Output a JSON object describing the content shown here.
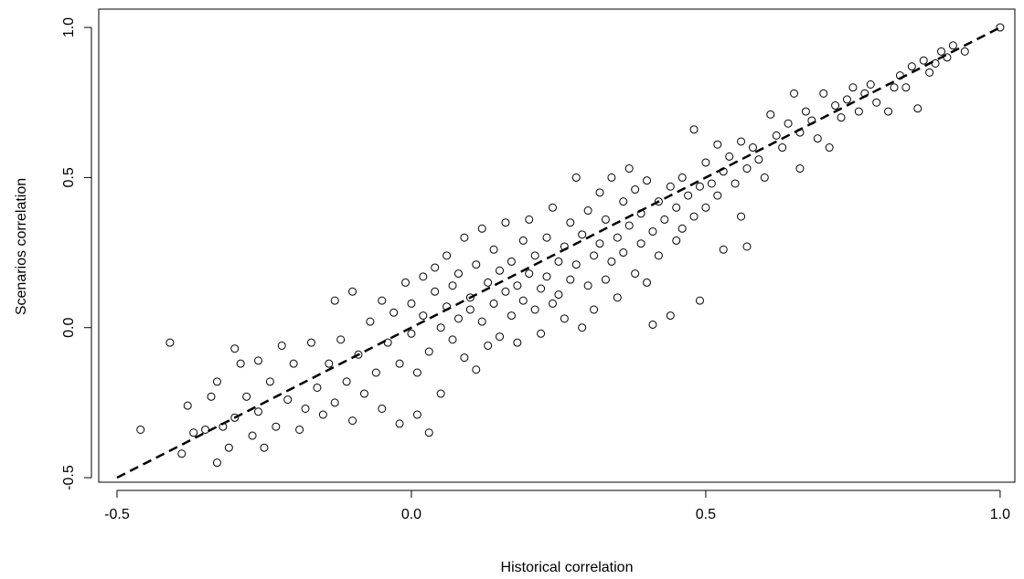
{
  "chart_data": {
    "type": "scatter",
    "x_label": "Historical correlation",
    "y_label": "Scenarios correlation",
    "xlim": [
      -0.531,
      1.025
    ],
    "ylim": [
      -0.515,
      1.061
    ],
    "xticks": [
      -0.5,
      {
        "value": 0,
        "label": "0.0"
      },
      0.5,
      {
        "value": 1,
        "label": "1.0"
      }
    ],
    "yticks": [
      -0.5,
      {
        "value": 0,
        "label": "0.0"
      },
      0.5,
      {
        "value": 1,
        "label": "1.0"
      }
    ],
    "color": "#000000",
    "reference_line": {
      "x": [
        -0.5,
        1.0
      ],
      "y": [
        -0.5,
        1.0
      ]
    },
    "x": [
      -0.46,
      -0.41,
      -0.39,
      -0.38,
      -0.37,
      -0.35,
      -0.34,
      -0.33,
      -0.33,
      -0.32,
      -0.31,
      -0.3,
      -0.3,
      -0.29,
      -0.28,
      -0.27,
      -0.26,
      -0.26,
      -0.25,
      -0.24,
      -0.23,
      -0.22,
      -0.21,
      -0.2,
      -0.19,
      -0.18,
      -0.17,
      -0.16,
      -0.15,
      -0.14,
      -0.13,
      -0.13,
      -0.12,
      -0.11,
      -0.1,
      -0.1,
      -0.09,
      -0.08,
      -0.07,
      -0.06,
      -0.05,
      -0.05,
      -0.04,
      -0.03,
      -0.02,
      -0.02,
      -0.01,
      0.0,
      0.0,
      0.01,
      0.01,
      0.02,
      0.02,
      0.03,
      0.03,
      0.04,
      0.04,
      0.05,
      0.05,
      0.06,
      0.06,
      0.07,
      0.07,
      0.08,
      0.08,
      0.09,
      0.09,
      0.1,
      0.1,
      0.11,
      0.11,
      0.12,
      0.12,
      0.13,
      0.13,
      0.14,
      0.14,
      0.15,
      0.15,
      0.16,
      0.16,
      0.17,
      0.17,
      0.18,
      0.18,
      0.19,
      0.19,
      0.2,
      0.2,
      0.21,
      0.21,
      0.22,
      0.22,
      0.23,
      0.23,
      0.24,
      0.24,
      0.25,
      0.25,
      0.26,
      0.26,
      0.27,
      0.27,
      0.28,
      0.28,
      0.29,
      0.29,
      0.3,
      0.3,
      0.31,
      0.31,
      0.32,
      0.32,
      0.33,
      0.33,
      0.34,
      0.34,
      0.35,
      0.35,
      0.36,
      0.36,
      0.37,
      0.37,
      0.38,
      0.38,
      0.39,
      0.39,
      0.4,
      0.4,
      0.41,
      0.41,
      0.42,
      0.42,
      0.43,
      0.44,
      0.44,
      0.45,
      0.45,
      0.46,
      0.46,
      0.47,
      0.48,
      0.48,
      0.49,
      0.49,
      0.5,
      0.5,
      0.51,
      0.52,
      0.52,
      0.53,
      0.53,
      0.54,
      0.55,
      0.56,
      0.56,
      0.57,
      0.57,
      0.58,
      0.59,
      0.6,
      0.61,
      0.62,
      0.63,
      0.64,
      0.65,
      0.66,
      0.66,
      0.67,
      0.68,
      0.69,
      0.7,
      0.71,
      0.72,
      0.73,
      0.74,
      0.75,
      0.76,
      0.77,
      0.78,
      0.79,
      0.81,
      0.82,
      0.83,
      0.84,
      0.85,
      0.86,
      0.87,
      0.88,
      0.89,
      0.9,
      0.91,
      0.92,
      0.94,
      1.0
    ],
    "values": [
      -0.34,
      -0.05,
      -0.42,
      -0.26,
      -0.35,
      -0.34,
      -0.23,
      -0.18,
      -0.45,
      -0.33,
      -0.4,
      -0.07,
      -0.3,
      -0.12,
      -0.23,
      -0.36,
      -0.11,
      -0.28,
      -0.4,
      -0.18,
      -0.33,
      -0.06,
      -0.24,
      -0.12,
      -0.34,
      -0.27,
      -0.05,
      -0.2,
      -0.29,
      -0.12,
      0.09,
      -0.25,
      -0.04,
      -0.18,
      0.12,
      -0.31,
      -0.09,
      -0.22,
      0.02,
      -0.15,
      0.09,
      -0.27,
      -0.05,
      0.05,
      -0.32,
      -0.12,
      0.15,
      -0.02,
      0.08,
      -0.15,
      -0.29,
      0.17,
      0.04,
      -0.35,
      -0.08,
      0.12,
      0.2,
      -0.22,
      0.0,
      0.07,
      0.24,
      -0.04,
      0.14,
      0.03,
      0.18,
      0.3,
      -0.1,
      0.1,
      0.06,
      0.21,
      -0.14,
      0.02,
      0.33,
      0.15,
      -0.06,
      0.08,
      0.26,
      0.19,
      -0.03,
      0.12,
      0.35,
      0.04,
      0.22,
      0.14,
      -0.05,
      0.29,
      0.09,
      0.18,
      0.36,
      0.06,
      0.24,
      0.13,
      -0.02,
      0.3,
      0.17,
      0.08,
      0.4,
      0.22,
      0.11,
      0.27,
      0.03,
      0.35,
      0.16,
      0.5,
      0.21,
      0.0,
      0.31,
      0.14,
      0.39,
      0.24,
      0.06,
      0.45,
      0.28,
      0.16,
      0.36,
      0.22,
      0.5,
      0.3,
      0.1,
      0.42,
      0.25,
      0.53,
      0.34,
      0.18,
      0.46,
      0.28,
      0.38,
      0.15,
      0.49,
      0.01,
      0.32,
      0.42,
      0.24,
      0.36,
      0.04,
      0.47,
      0.29,
      0.4,
      0.5,
      0.33,
      0.44,
      0.66,
      0.37,
      0.09,
      0.47,
      0.55,
      0.4,
      0.48,
      0.61,
      0.44,
      0.26,
      0.52,
      0.57,
      0.48,
      0.62,
      0.37,
      0.27,
      0.53,
      0.6,
      0.56,
      0.5,
      0.71,
      0.64,
      0.6,
      0.68,
      0.78,
      0.53,
      0.65,
      0.72,
      0.69,
      0.63,
      0.78,
      0.6,
      0.74,
      0.7,
      0.76,
      0.8,
      0.72,
      0.78,
      0.81,
      0.75,
      0.72,
      0.8,
      0.84,
      0.8,
      0.87,
      0.73,
      0.89,
      0.85,
      0.88,
      0.92,
      0.9,
      0.94,
      0.92,
      1.0
    ]
  }
}
